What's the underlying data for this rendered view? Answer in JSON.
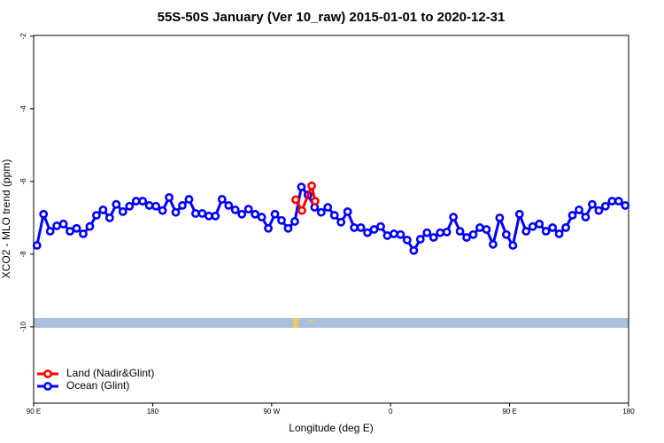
{
  "chart_data": {
    "type": "line",
    "title": "55S-50S January (Ver 10_raw)   2015-01-01 to 2020-12-31",
    "x_label": "Longitude (deg E)",
    "y_label": "XCO2 - MLO trend (ppm)",
    "xlim": [
      90,
      540
    ],
    "xticks": [
      {
        "value": 90,
        "label": "90 E"
      },
      {
        "value": 180,
        "label": "180"
      },
      {
        "value": 270,
        "label": "90 W"
      },
      {
        "value": 360,
        "label": "0"
      },
      {
        "value": 450,
        "label": "90 E"
      },
      {
        "value": 540,
        "label": "180"
      }
    ],
    "ylim": [
      -12.1,
      -1.98
    ],
    "yticks": [
      -2,
      -4,
      -6,
      -8,
      -10
    ],
    "legend": "bottom-left",
    "series": [
      {
        "name": "Land (Nadir&Glint)",
        "color": "#ff0000",
        "x": [
          288.2,
          292.9,
          300.3,
          302.9
        ],
        "values": [
          -6.5,
          -6.8,
          -6.12,
          -6.54
        ]
      },
      {
        "name": "Ocean (Glint)",
        "color": "#0000ff",
        "x": [
          92.5,
          97.5,
          102.5,
          107.5,
          112.5,
          117.5,
          122.5,
          127.5,
          132.5,
          137.5,
          142.5,
          147.5,
          152.5,
          157.5,
          162.5,
          167.5,
          172.5,
          177.5,
          182.5,
          187.5,
          192.5,
          197.5,
          202.5,
          207.5,
          212.5,
          217.5,
          222.5,
          227.5,
          232.5,
          237.5,
          242.5,
          247.5,
          252.5,
          257.5,
          262.5,
          267.5,
          272.5,
          277.5,
          282.5,
          287.5,
          292.5,
          297.5,
          302.5,
          307.5,
          312.5,
          317.5,
          322.5,
          327.5,
          332.5,
          337.5,
          342.5,
          347.5,
          352.5,
          357.5,
          362.5,
          367.5,
          372.5,
          377.5,
          382.5,
          387.5,
          392.5,
          397.5,
          402.5,
          407.5,
          412.5,
          417.5,
          422.5,
          427.5,
          432.5,
          437.5,
          442.5,
          447.5,
          452.5,
          457.5,
          462.5,
          467.5,
          472.5,
          477.5,
          482.5,
          487.5,
          492.5,
          497.5,
          502.5,
          507.5,
          512.5,
          517.5,
          522.5,
          527.5,
          532.5,
          537.5
        ],
        "values": [
          -7.76,
          -6.9,
          -7.37,
          -7.22,
          -7.17,
          -7.37,
          -7.29,
          -7.44,
          -7.24,
          -6.93,
          -6.78,
          -7.0,
          -6.63,
          -6.83,
          -6.68,
          -6.54,
          -6.54,
          -6.66,
          -6.68,
          -6.8,
          -6.44,
          -6.85,
          -6.66,
          -6.49,
          -6.88,
          -6.88,
          -6.95,
          -6.95,
          -6.49,
          -6.66,
          -6.78,
          -6.9,
          -6.76,
          -6.9,
          -6.98,
          -7.29,
          -6.9,
          -7.07,
          -7.29,
          -7.1,
          -6.15,
          -6.37,
          -6.71,
          -6.85,
          -6.71,
          -6.93,
          -7.12,
          -6.83,
          -7.27,
          -7.27,
          -7.41,
          -7.32,
          -7.24,
          -7.49,
          -7.44,
          -7.46,
          -7.61,
          -7.9,
          -7.59,
          -7.41,
          -7.54,
          -7.41,
          -7.39,
          -6.98,
          -7.37,
          -7.54,
          -7.46,
          -7.27,
          -7.32,
          -7.73,
          -7.0,
          -7.46,
          -7.76,
          -6.9,
          -7.37,
          -7.24,
          -7.17,
          -7.37,
          -7.27,
          -7.44,
          -7.27,
          -6.93,
          -6.78,
          -6.98,
          -6.63,
          -6.8,
          -6.68,
          -6.54,
          -6.54,
          -6.66
        ]
      }
    ]
  }
}
